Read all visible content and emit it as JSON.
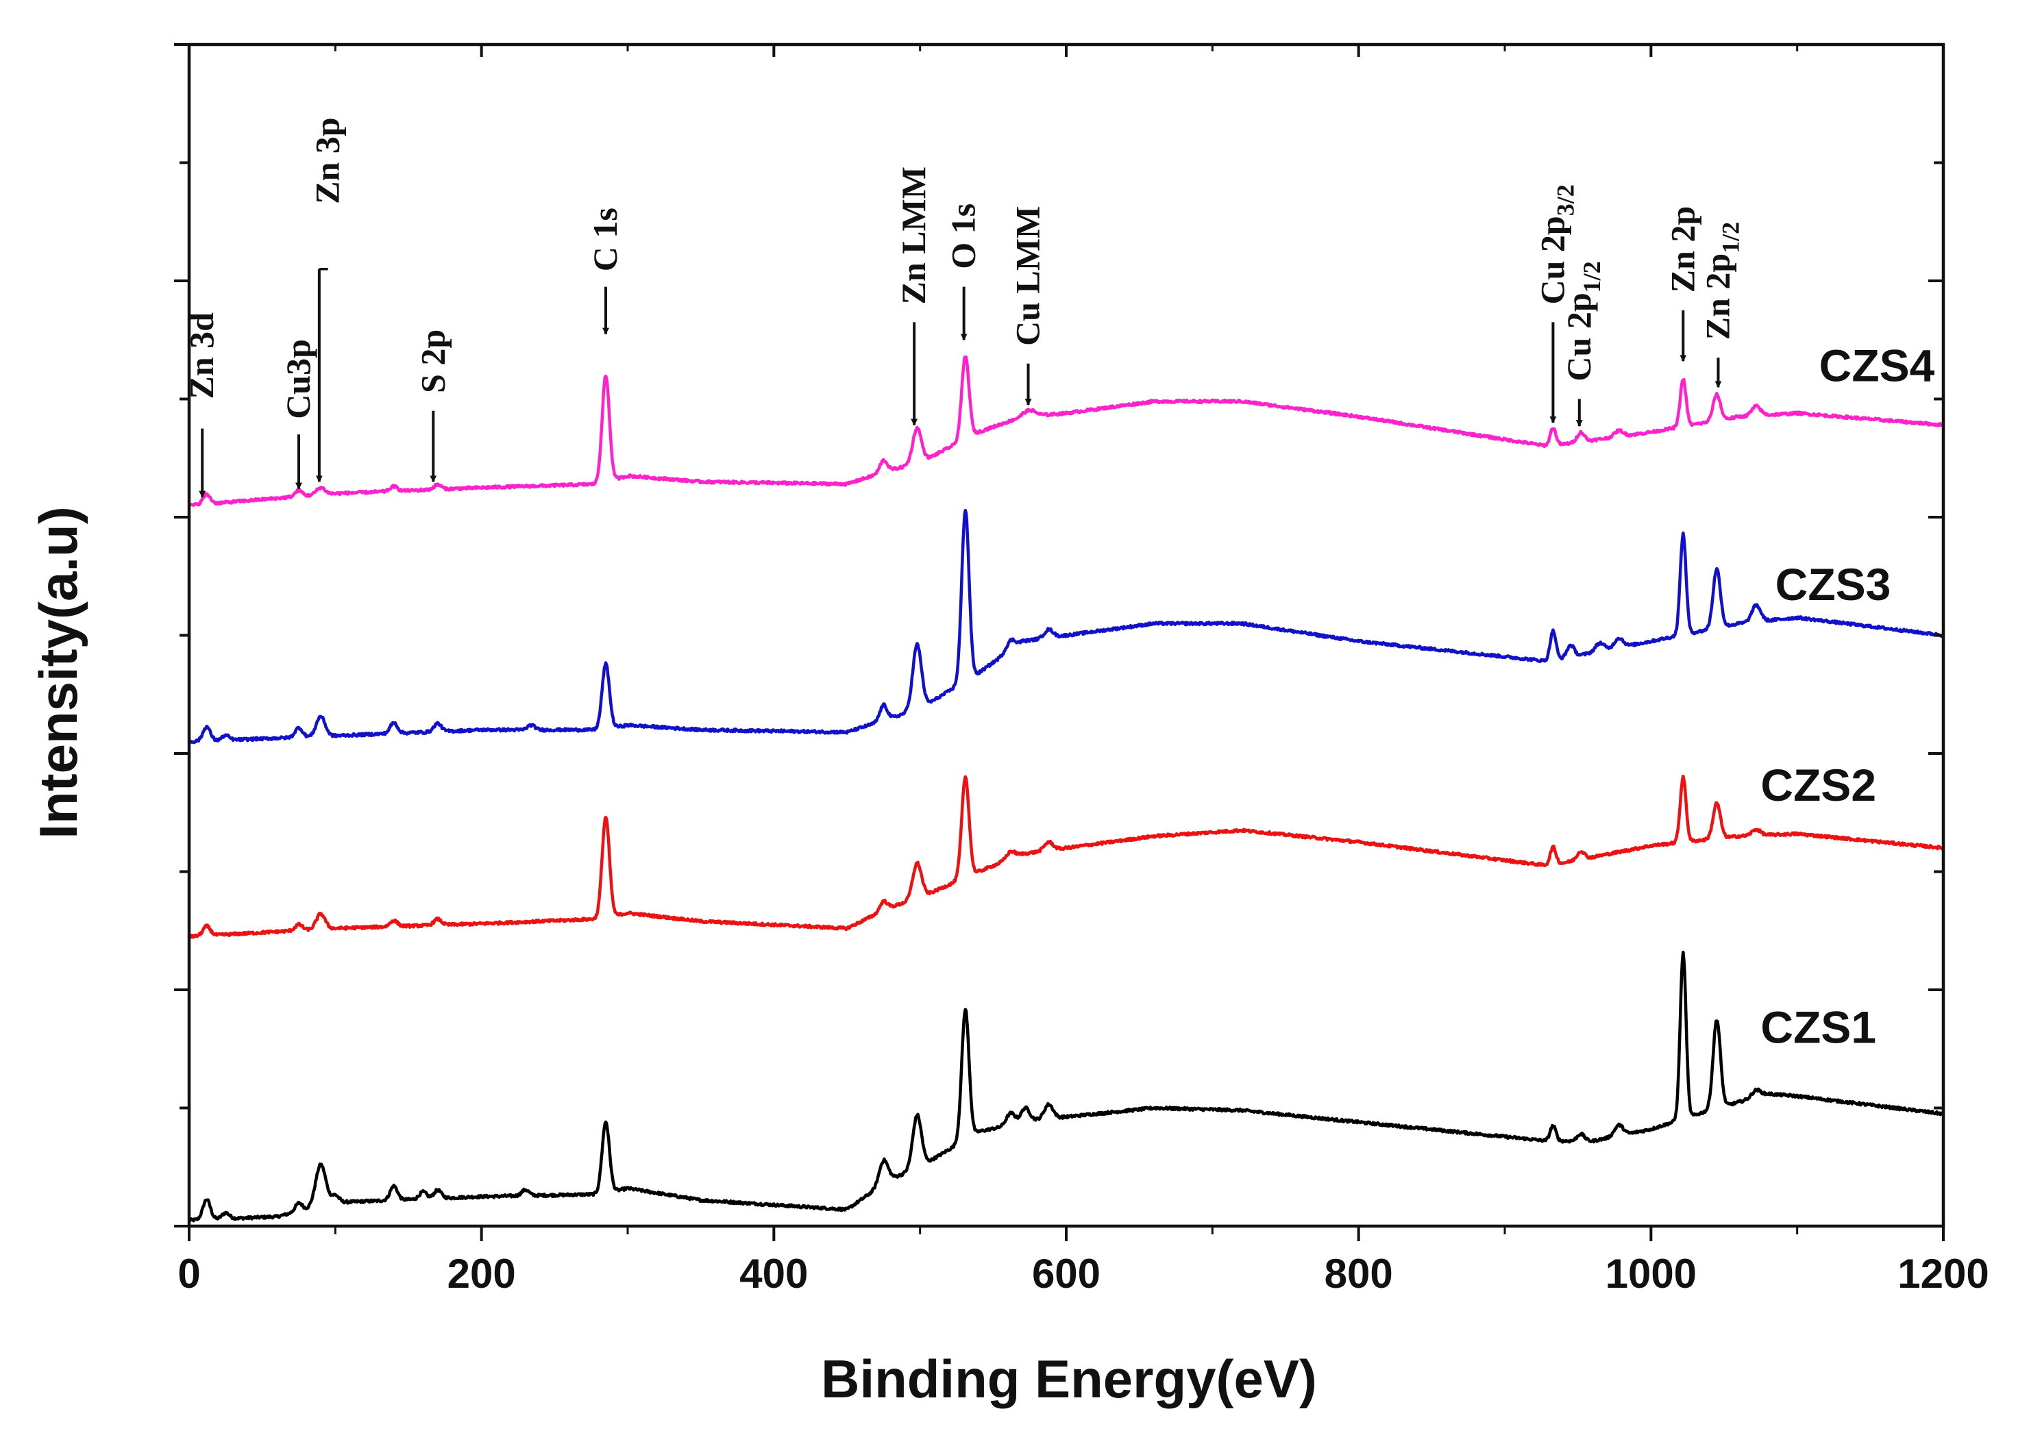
{
  "chart_data": {
    "type": "line",
    "title": "",
    "xlabel": "Binding Energy(eV)",
    "ylabel": "Intensity(a.u)",
    "xlim": [
      0,
      1200
    ],
    "ylim": [
      0,
      10
    ],
    "x_ticks": [
      "0",
      "200",
      "400",
      "600",
      "800",
      "1000",
      "1200"
    ],
    "grid": false,
    "series": [
      {
        "name": "CZS1",
        "color": "#000000",
        "baseline": [
          [
            0,
            0.05
          ],
          [
            20,
            0.06
          ],
          [
            60,
            0.08
          ],
          [
            100,
            0.2
          ],
          [
            200,
            0.25
          ],
          [
            280,
            0.27
          ],
          [
            300,
            0.32
          ],
          [
            350,
            0.22
          ],
          [
            450,
            0.14
          ],
          [
            480,
            0.4
          ],
          [
            500,
            0.5
          ],
          [
            540,
            0.8
          ],
          [
            560,
            0.85
          ],
          [
            580,
            0.9
          ],
          [
            620,
            0.95
          ],
          [
            660,
            1.0
          ],
          [
            720,
            0.98
          ],
          [
            800,
            0.88
          ],
          [
            930,
            0.72
          ],
          [
            960,
            0.72
          ],
          [
            1000,
            0.82
          ],
          [
            1040,
            0.98
          ],
          [
            1080,
            1.12
          ],
          [
            1100,
            1.1
          ],
          [
            1200,
            0.95
          ]
        ],
        "peaks": [
          [
            12,
            0.17,
            2.5
          ],
          [
            25,
            0.05,
            2.5
          ],
          [
            75,
            0.07,
            2.5
          ],
          [
            90,
            0.35,
            3.5
          ],
          [
            100,
            0.06,
            2.5
          ],
          [
            140,
            0.12,
            2.5
          ],
          [
            160,
            0.06,
            2.5
          ],
          [
            170,
            0.07,
            2.5
          ],
          [
            230,
            0.05,
            2.5
          ],
          [
            285,
            0.6,
            2.5
          ],
          [
            475,
            0.2,
            3
          ],
          [
            498,
            0.45,
            3
          ],
          [
            531,
            1.1,
            2.5
          ],
          [
            562,
            0.1,
            3
          ],
          [
            572,
            0.12,
            3
          ],
          [
            588,
            0.12,
            3
          ],
          [
            933,
            0.13,
            2
          ],
          [
            952,
            0.06,
            2.5
          ],
          [
            978,
            0.09,
            3
          ],
          [
            1022,
            1.4,
            2
          ],
          [
            1045,
            0.75,
            2.5
          ],
          [
            1072,
            0.06,
            3
          ]
        ]
      },
      {
        "name": "CZS2",
        "color": "#ee1111",
        "baseline": [
          [
            0,
            2.45
          ],
          [
            100,
            2.52
          ],
          [
            200,
            2.56
          ],
          [
            280,
            2.6
          ],
          [
            300,
            2.65
          ],
          [
            350,
            2.58
          ],
          [
            450,
            2.52
          ],
          [
            480,
            2.7
          ],
          [
            500,
            2.78
          ],
          [
            540,
            3.0
          ],
          [
            570,
            3.15
          ],
          [
            600,
            3.2
          ],
          [
            660,
            3.3
          ],
          [
            720,
            3.35
          ],
          [
            800,
            3.25
          ],
          [
            930,
            3.05
          ],
          [
            1000,
            3.22
          ],
          [
            1060,
            3.3
          ],
          [
            1100,
            3.32
          ],
          [
            1200,
            3.2
          ]
        ],
        "peaks": [
          [
            12,
            0.08,
            2.5
          ],
          [
            75,
            0.05,
            2.5
          ],
          [
            90,
            0.13,
            3
          ],
          [
            140,
            0.05,
            2.5
          ],
          [
            170,
            0.05,
            2.5
          ],
          [
            285,
            0.85,
            2.5
          ],
          [
            475,
            0.08,
            2.5
          ],
          [
            498,
            0.3,
            3
          ],
          [
            531,
            0.85,
            2.5
          ],
          [
            562,
            0.06,
            3
          ],
          [
            588,
            0.07,
            3
          ],
          [
            933,
            0.15,
            2
          ],
          [
            952,
            0.07,
            2.5
          ],
          [
            1022,
            0.55,
            2
          ],
          [
            1045,
            0.3,
            2.5
          ],
          [
            1072,
            0.05,
            3
          ]
        ]
      },
      {
        "name": "CZS3",
        "color": "#1111cc",
        "baseline": [
          [
            0,
            4.1
          ],
          [
            100,
            4.15
          ],
          [
            200,
            4.2
          ],
          [
            280,
            4.2
          ],
          [
            300,
            4.24
          ],
          [
            350,
            4.2
          ],
          [
            450,
            4.18
          ],
          [
            480,
            4.3
          ],
          [
            500,
            4.38
          ],
          [
            540,
            4.68
          ],
          [
            570,
            4.95
          ],
          [
            600,
            5.0
          ],
          [
            660,
            5.1
          ],
          [
            720,
            5.1
          ],
          [
            800,
            4.95
          ],
          [
            930,
            4.78
          ],
          [
            1000,
            4.95
          ],
          [
            1060,
            5.1
          ],
          [
            1100,
            5.15
          ],
          [
            1200,
            5.0
          ]
        ],
        "peaks": [
          [
            12,
            0.12,
            2.5
          ],
          [
            25,
            0.04,
            2.5
          ],
          [
            75,
            0.08,
            2.5
          ],
          [
            90,
            0.17,
            3
          ],
          [
            140,
            0.09,
            2.5
          ],
          [
            170,
            0.07,
            2.5
          ],
          [
            234,
            0.04,
            2.5
          ],
          [
            285,
            0.55,
            2.5
          ],
          [
            475,
            0.13,
            2.5
          ],
          [
            498,
            0.55,
            3
          ],
          [
            531,
            1.45,
            2.5
          ],
          [
            562,
            0.08,
            3
          ],
          [
            588,
            0.07,
            3
          ],
          [
            933,
            0.25,
            2
          ],
          [
            945,
            0.1,
            2.5
          ],
          [
            965,
            0.07,
            3
          ],
          [
            978,
            0.08,
            3
          ],
          [
            1022,
            0.85,
            2
          ],
          [
            1045,
            0.5,
            2.5
          ],
          [
            1072,
            0.14,
            3
          ]
        ]
      },
      {
        "name": "CZS4",
        "color": "#ff22cc",
        "baseline": [
          [
            0,
            6.1
          ],
          [
            100,
            6.2
          ],
          [
            200,
            6.25
          ],
          [
            280,
            6.28
          ],
          [
            300,
            6.35
          ],
          [
            350,
            6.3
          ],
          [
            450,
            6.28
          ],
          [
            480,
            6.4
          ],
          [
            500,
            6.46
          ],
          [
            540,
            6.72
          ],
          [
            570,
            6.85
          ],
          [
            600,
            6.88
          ],
          [
            660,
            6.98
          ],
          [
            720,
            6.98
          ],
          [
            800,
            6.85
          ],
          [
            930,
            6.6
          ],
          [
            1000,
            6.72
          ],
          [
            1060,
            6.85
          ],
          [
            1100,
            6.88
          ],
          [
            1200,
            6.78
          ]
        ],
        "peaks": [
          [
            12,
            0.08,
            2.5
          ],
          [
            75,
            0.05,
            2.5
          ],
          [
            90,
            0.06,
            3
          ],
          [
            140,
            0.04,
            2.5
          ],
          [
            170,
            0.04,
            2.5
          ],
          [
            285,
            0.9,
            2.5
          ],
          [
            475,
            0.1,
            2.5
          ],
          [
            498,
            0.3,
            3
          ],
          [
            531,
            0.7,
            2.5
          ],
          [
            575,
            0.05,
            4
          ],
          [
            933,
            0.15,
            2
          ],
          [
            952,
            0.08,
            2.5
          ],
          [
            978,
            0.05,
            3
          ],
          [
            1022,
            0.4,
            2
          ],
          [
            1045,
            0.22,
            2.5
          ],
          [
            1072,
            0.08,
            3
          ]
        ]
      }
    ],
    "series_labels": [
      {
        "text": "CZS4",
        "x": 1115,
        "y": 7.15
      },
      {
        "text": "CZS3",
        "x": 1085,
        "y": 5.3
      },
      {
        "text": "CZS2",
        "x": 1075,
        "y": 3.6
      },
      {
        "text": "CZS1",
        "x": 1075,
        "y": 1.55
      }
    ],
    "annotations": [
      {
        "label": "Zn 3d",
        "sub": "",
        "x": 9,
        "tip": 6.17,
        "tail": 6.75,
        "text_y": 7.0
      },
      {
        "label": "Cu3p",
        "sub": "",
        "x": 75,
        "tip": 6.24,
        "tail": 6.7,
        "text_y": 6.83
      },
      {
        "label": "Zn 3p",
        "sub": "",
        "x": 89,
        "tip": 6.3,
        "tail": 8.1,
        "text_y": 8.65,
        "leader_to_x": 95
      },
      {
        "label": "S 2p",
        "sub": "",
        "x": 167,
        "tip": 6.3,
        "tail": 6.9,
        "text_y": 7.05
      },
      {
        "label": "C 1s",
        "sub": "",
        "x": 285,
        "tip": 7.55,
        "tail": 7.95,
        "text_y": 8.08
      },
      {
        "label": "Zn LMM",
        "sub": "",
        "x": 496,
        "tip": 6.78,
        "tail": 7.65,
        "text_y": 7.8
      },
      {
        "label": "O 1s",
        "sub": "",
        "x": 530,
        "tip": 7.5,
        "tail": 7.95,
        "text_y": 8.1
      },
      {
        "label": "Cu LMM",
        "sub": "",
        "x": 574,
        "tip": 6.95,
        "tail": 7.3,
        "text_y": 7.45
      },
      {
        "label": "Cu 2p",
        "sub": "3/2",
        "x": 933,
        "tip": 6.8,
        "tail": 7.65,
        "text_y": 7.8
      },
      {
        "label": "Cu 2p",
        "sub": "1/2",
        "x": 951,
        "tip": 6.77,
        "tail": 7.0,
        "text_y": 7.15
      },
      {
        "label": "Zn 2p",
        "sub": "",
        "x": 1022,
        "tip": 7.32,
        "tail": 7.75,
        "text_y": 7.9
      },
      {
        "label": "Zn 2p",
        "sub": "1/2",
        "x": 1046,
        "tip": 7.1,
        "tail": 7.35,
        "text_y": 7.5
      }
    ]
  }
}
